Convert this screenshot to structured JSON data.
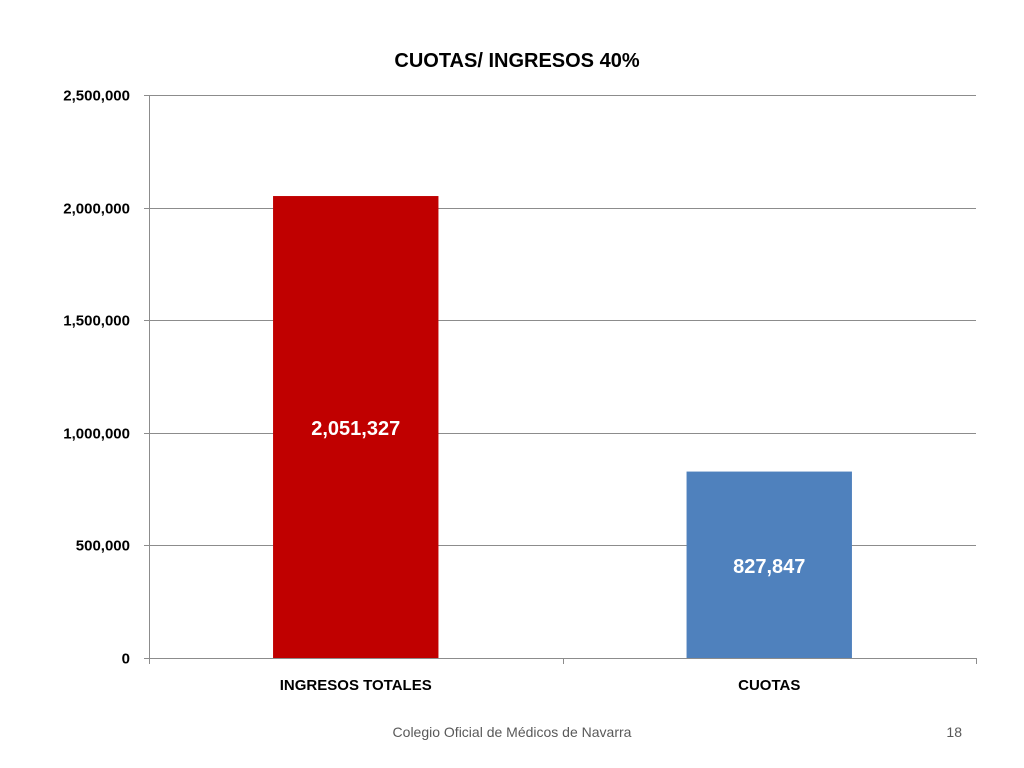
{
  "chart_data": {
    "type": "bar",
    "title": "CUOTAS/ INGRESOS 40%",
    "categories": [
      "INGRESOS TOTALES",
      "CUOTAS"
    ],
    "values": [
      2051327,
      827847
    ],
    "data_labels": [
      "2,051,327",
      "827,847"
    ],
    "colors": [
      "#c00000",
      "#4f81bd"
    ],
    "ylim": [
      0,
      2500000
    ],
    "yticks": [
      0,
      500000,
      1000000,
      1500000,
      2000000,
      2500000
    ],
    "ytick_labels": [
      "0",
      "500,000",
      "1,000,000",
      "1,500,000",
      "2,000,000",
      "2,500,000"
    ],
    "grid": true,
    "legend": "none",
    "xlabel": "",
    "ylabel": ""
  },
  "footer": {
    "organization": "Colegio Oficial de Médicos de Navarra",
    "page_number": "18"
  }
}
